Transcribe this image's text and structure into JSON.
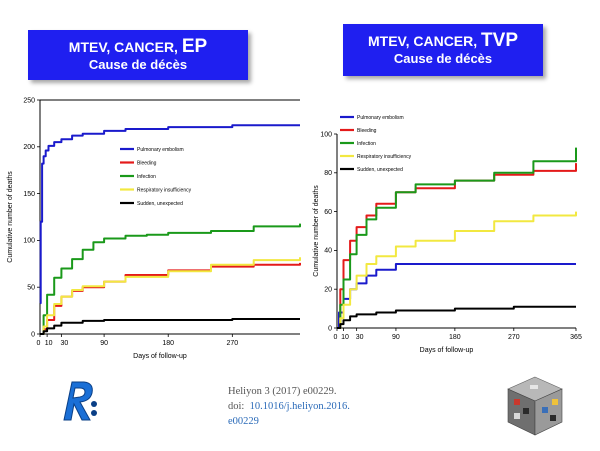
{
  "titles": {
    "left": {
      "line1": "MTEV, CANCER, ",
      "line1_big": "EP",
      "line2": "Cause de décès"
    },
    "right": {
      "line1": "MTEV, CANCER, ",
      "line1_big": "TVP",
      "line2": "Cause de décès"
    }
  },
  "citation": {
    "line1": "Heliyon 3 (2017) e00229.",
    "doi_prefix": "doi:",
    "doi_link": "10.1016/j.heliyon.2016.",
    "doi_link2": "e00229"
  },
  "logos": {
    "left": "",
    "right": ""
  },
  "chart_data": [
    {
      "type": "line",
      "title": "",
      "xlabel": "Days of follow-up",
      "ylabel": "Cumulative number of deaths",
      "xlim": [
        0,
        365
      ],
      "ylim": [
        0,
        250
      ],
      "xticks": [
        0,
        10,
        30,
        90,
        180,
        270
      ],
      "xticklabels": [
        "0",
        "10",
        "30",
        "90",
        "180",
        "270"
      ],
      "yticks": [
        0,
        50,
        100,
        150,
        200,
        250
      ],
      "grid": false,
      "legend_position": "upper-middle",
      "series": [
        {
          "name": "Pulmonary embolism",
          "color": "#1a1acc",
          "x": [
            0,
            1,
            3,
            5,
            8,
            12,
            20,
            30,
            45,
            60,
            90,
            120,
            180,
            270,
            365
          ],
          "y": [
            33,
            120,
            182,
            190,
            196,
            201,
            205,
            208,
            212,
            214,
            217,
            219,
            221,
            223,
            223
          ]
        },
        {
          "name": "Bleeding",
          "color": "#e41a1a",
          "x": [
            0,
            5,
            10,
            20,
            30,
            45,
            60,
            90,
            120,
            180,
            240,
            300,
            365
          ],
          "y": [
            0,
            5,
            15,
            30,
            40,
            46,
            50,
            56,
            63,
            68,
            72,
            74,
            76
          ]
        },
        {
          "name": "Infection",
          "color": "#1a991a",
          "x": [
            0,
            5,
            10,
            20,
            30,
            45,
            60,
            75,
            90,
            120,
            150,
            180,
            240,
            300,
            365
          ],
          "y": [
            0,
            20,
            42,
            60,
            70,
            80,
            90,
            98,
            102,
            105,
            106,
            108,
            110,
            115,
            118
          ]
        },
        {
          "name": "Respiratory insufficiency",
          "color": "#f2e840",
          "x": [
            0,
            5,
            10,
            20,
            30,
            45,
            60,
            90,
            120,
            180,
            240,
            300,
            365
          ],
          "y": [
            0,
            8,
            20,
            32,
            40,
            47,
            51,
            56,
            61,
            67,
            74,
            79,
            82
          ]
        },
        {
          "name": "Sudden, unexpected",
          "color": "#000000",
          "x": [
            0,
            5,
            10,
            20,
            30,
            60,
            90,
            180,
            270,
            365
          ],
          "y": [
            0,
            3,
            6,
            9,
            12,
            14,
            15,
            15,
            16,
            16
          ]
        }
      ],
      "reference_line_y": 250
    },
    {
      "type": "line",
      "title": "",
      "xlabel": "Days of follow-up",
      "ylabel": "Cumulative number of deaths",
      "xlim": [
        0,
        365
      ],
      "ylim": [
        0,
        100
      ],
      "xticks": [
        0,
        10,
        30,
        90,
        180,
        270,
        365
      ],
      "xticklabels": [
        "0",
        "10",
        "30",
        "90",
        "180",
        "270",
        "365"
      ],
      "yticks": [
        0,
        20,
        40,
        60,
        80,
        100
      ],
      "grid": false,
      "legend_position": "top-left",
      "series": [
        {
          "name": "Pulmonary embolism",
          "color": "#1a1acc",
          "x": [
            0,
            3,
            10,
            20,
            30,
            45,
            60,
            90,
            180,
            270,
            365
          ],
          "y": [
            0,
            8,
            15,
            20,
            23,
            27,
            30,
            33,
            33,
            33,
            33
          ]
        },
        {
          "name": "Bleeding",
          "color": "#e41a1a",
          "x": [
            0,
            5,
            10,
            20,
            30,
            45,
            60,
            90,
            120,
            180,
            240,
            300,
            365
          ],
          "y": [
            0,
            20,
            35,
            45,
            52,
            58,
            64,
            70,
            72,
            76,
            79,
            81,
            85
          ]
        },
        {
          "name": "Infection",
          "color": "#1a991a",
          "x": [
            0,
            5,
            10,
            20,
            30,
            45,
            60,
            90,
            120,
            180,
            240,
            300,
            365
          ],
          "y": [
            0,
            12,
            25,
            38,
            48,
            56,
            62,
            70,
            74,
            76,
            80,
            86,
            93
          ]
        },
        {
          "name": "Respiratory insufficiency",
          "color": "#f2e840",
          "x": [
            0,
            5,
            10,
            20,
            30,
            45,
            60,
            90,
            120,
            180,
            240,
            300,
            365
          ],
          "y": [
            0,
            5,
            12,
            20,
            27,
            33,
            37,
            42,
            45,
            50,
            55,
            58,
            60
          ]
        },
        {
          "name": "Sudden, unexpected",
          "color": "#000000",
          "x": [
            0,
            5,
            10,
            20,
            30,
            60,
            90,
            180,
            270,
            365
          ],
          "y": [
            0,
            2,
            4,
            6,
            7,
            8,
            9,
            10,
            11,
            11
          ]
        }
      ]
    }
  ]
}
